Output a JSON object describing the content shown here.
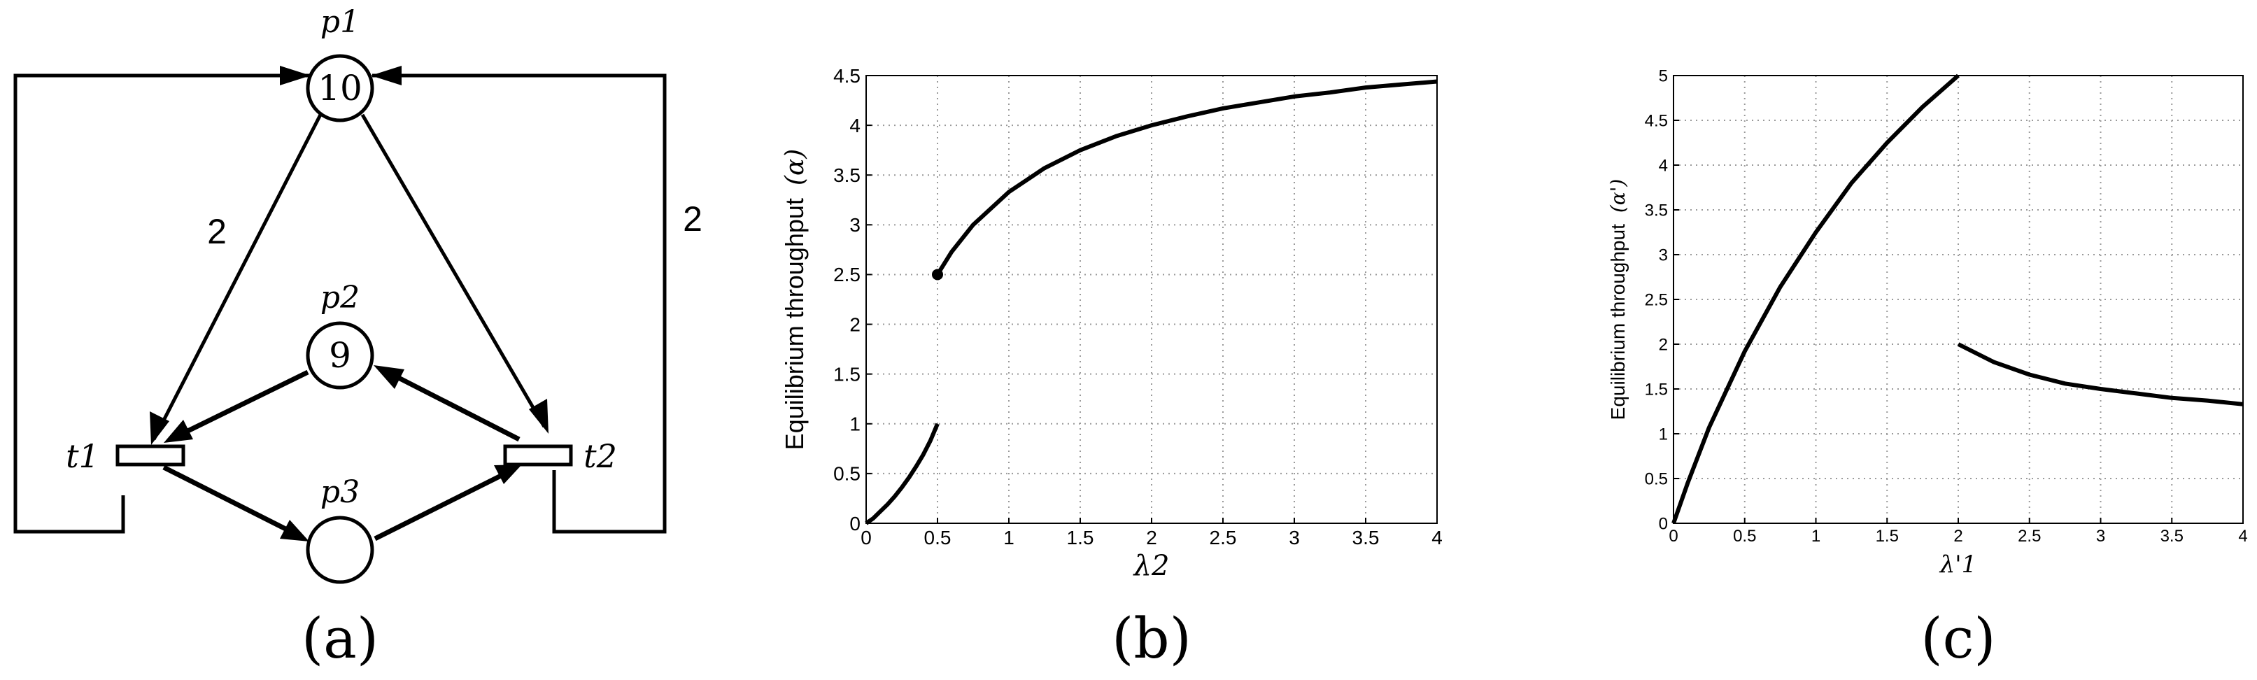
{
  "colors": {
    "ink": "#000000",
    "grid": "#9a9a9a",
    "background": "#ffffff"
  },
  "panel_a": {
    "caption": "(a)",
    "places": [
      {
        "id": "p1",
        "label": "p1",
        "tokens": "10"
      },
      {
        "id": "p2",
        "label": "p2",
        "tokens": "9"
      },
      {
        "id": "p3",
        "label": "p3",
        "tokens": ""
      }
    ],
    "transitions": [
      {
        "id": "t1",
        "label": "t1"
      },
      {
        "id": "t2",
        "label": "t2"
      }
    ],
    "arc_weights": {
      "p1_to_t1": "2",
      "t2_to_p1": "2"
    }
  },
  "chart_data": [
    {
      "panel": "b",
      "caption": "(b)",
      "type": "line",
      "xlabel": "λ2",
      "ylabel": "Equilibrium throughput",
      "ylabel_symbol": "(α)",
      "xlim": [
        0,
        4
      ],
      "ylim": [
        0,
        4.5
      ],
      "xticks": [
        "0",
        "0.5",
        "1",
        "1.5",
        "2",
        "2.5",
        "3",
        "3.5",
        "4"
      ],
      "yticks": [
        "0",
        "0.5",
        "1",
        "1.5",
        "2",
        "2.5",
        "3",
        "3.5",
        "4",
        "4.5"
      ],
      "grid": true,
      "series": [
        {
          "segment": "lower",
          "x": [
            0,
            0.05,
            0.1,
            0.15,
            0.2,
            0.25,
            0.3,
            0.35,
            0.4,
            0.45,
            0.5
          ],
          "y": [
            0,
            0.05,
            0.12,
            0.19,
            0.27,
            0.36,
            0.46,
            0.57,
            0.69,
            0.83,
            1.0
          ]
        },
        {
          "segment": "upper",
          "x": [
            0.5,
            0.6,
            0.75,
            1,
            1.25,
            1.5,
            1.75,
            2,
            2.25,
            2.5,
            2.75,
            3,
            3.25,
            3.5,
            3.75,
            4
          ],
          "y": [
            2.5,
            2.73,
            3.0,
            3.33,
            3.57,
            3.75,
            3.89,
            4.0,
            4.09,
            4.17,
            4.23,
            4.29,
            4.33,
            4.38,
            4.41,
            4.44
          ]
        }
      ],
      "markers": [
        {
          "x": 0.5,
          "y": 2.5
        }
      ]
    },
    {
      "panel": "c",
      "caption": "(c)",
      "type": "line",
      "xlabel": "λ'1",
      "ylabel": "Equilibrium throughput",
      "ylabel_symbol": "(α')",
      "xlim": [
        0,
        4
      ],
      "ylim": [
        0,
        5
      ],
      "xticks": [
        "0",
        "0.5",
        "1",
        "1.5",
        "2",
        "2.5",
        "3",
        "3.5",
        "4"
      ],
      "yticks": [
        "0",
        "0.5",
        "1",
        "1.5",
        "2",
        "2.5",
        "3",
        "3.5",
        "4",
        "4.5",
        "5"
      ],
      "grid": true,
      "series": [
        {
          "segment": "left",
          "x": [
            0,
            0.1,
            0.25,
            0.5,
            0.75,
            1,
            1.25,
            1.5,
            1.75,
            2
          ],
          "y": [
            0,
            0.45,
            1.07,
            1.92,
            2.64,
            3.25,
            3.8,
            4.25,
            4.65,
            5.0
          ]
        },
        {
          "segment": "right",
          "x": [
            2,
            2.25,
            2.5,
            2.75,
            3,
            3.25,
            3.5,
            3.75,
            4
          ],
          "y": [
            2.0,
            1.8,
            1.66,
            1.56,
            1.5,
            1.45,
            1.4,
            1.37,
            1.33
          ]
        }
      ],
      "markers": []
    }
  ]
}
